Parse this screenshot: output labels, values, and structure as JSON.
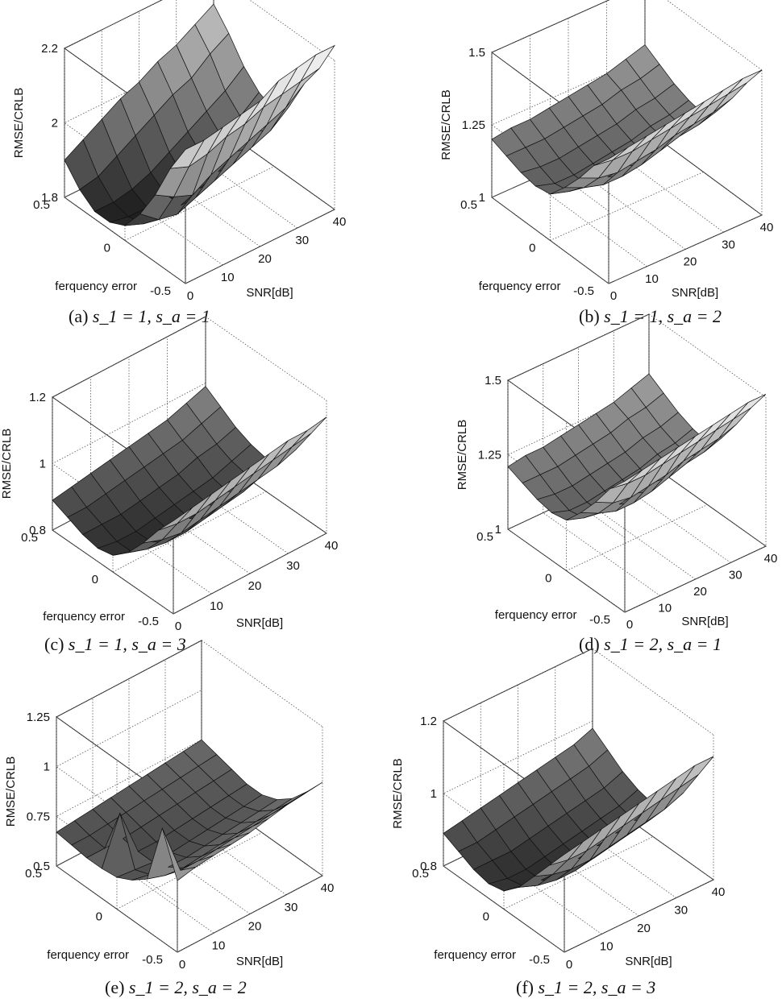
{
  "chart_data": [
    {
      "type": "surface",
      "caption_label": "(a)",
      "caption": "s_1 = 1, s_a = 1",
      "zlabel": "RMSE/CRLB",
      "xlabel": "SNR[dB]",
      "ylabel": "ferquency error",
      "x_ticks": [
        "0",
        "10",
        "20",
        "30",
        "40"
      ],
      "y_ticks": [
        "-0.5",
        "0",
        "0.5"
      ],
      "z_ticks": [
        "1.8",
        "2",
        "2.2"
      ],
      "zlim": [
        1.8,
        2.2
      ],
      "x": [
        0,
        5,
        10,
        15,
        20,
        25,
        30,
        35,
        40
      ],
      "y": [
        -0.5,
        -0.375,
        -0.25,
        -0.125,
        0,
        0.125,
        0.25,
        0.375,
        0.5
      ],
      "z": [
        [
          2.16,
          2.16,
          2.17,
          2.18,
          2.19,
          2.22,
          2.23,
          2.24,
          2.24
        ],
        [
          2.08,
          2.06,
          2.07,
          2.09,
          2.1,
          2.12,
          2.13,
          2.14,
          2.15
        ],
        [
          1.98,
          1.95,
          1.93,
          1.96,
          1.98,
          2.0,
          2.02,
          2.04,
          2.08
        ],
        [
          1.9,
          1.86,
          1.85,
          1.87,
          1.89,
          1.91,
          1.93,
          1.95,
          1.99
        ],
        [
          1.84,
          1.82,
          1.81,
          1.82,
          1.84,
          1.86,
          1.89,
          1.92,
          1.95
        ],
        [
          1.82,
          1.81,
          1.81,
          1.82,
          1.84,
          1.87,
          1.9,
          1.93,
          1.97
        ],
        [
          1.82,
          1.82,
          1.83,
          1.85,
          1.88,
          1.91,
          1.94,
          1.97,
          2.01
        ],
        [
          1.85,
          1.86,
          1.89,
          1.92,
          1.95,
          1.98,
          2.0,
          2.04,
          2.07
        ],
        [
          1.9,
          1.93,
          1.96,
          1.99,
          2.01,
          2.04,
          2.06,
          2.09,
          2.12
        ]
      ]
    },
    {
      "type": "surface",
      "caption_label": "(b)",
      "caption": "s_1 = 1, s_a = 2",
      "zlabel": "RMSE/CRLB",
      "xlabel": "SNR[dB]",
      "ylabel": "ferquency error",
      "x_ticks": [
        "0",
        "10",
        "20",
        "30",
        "40"
      ],
      "y_ticks": [
        "-0.5",
        "0",
        "0.5"
      ],
      "z_ticks": [
        "1",
        "1.25",
        "1.5"
      ],
      "zlim": [
        1,
        1.5
      ],
      "x": [
        0,
        5,
        10,
        15,
        20,
        25,
        30,
        35,
        40
      ],
      "y": [
        -0.5,
        -0.375,
        -0.25,
        -0.125,
        0,
        0.125,
        0.25,
        0.375,
        0.5
      ],
      "z": [
        [
          1.43,
          1.44,
          1.45,
          1.46,
          1.47,
          1.48,
          1.49,
          1.5,
          1.5
        ],
        [
          1.37,
          1.36,
          1.36,
          1.37,
          1.38,
          1.39,
          1.4,
          1.41,
          1.42
        ],
        [
          1.29,
          1.26,
          1.25,
          1.26,
          1.27,
          1.29,
          1.3,
          1.31,
          1.33
        ],
        [
          1.22,
          1.19,
          1.17,
          1.17,
          1.18,
          1.2,
          1.22,
          1.23,
          1.25
        ],
        [
          1.16,
          1.14,
          1.13,
          1.13,
          1.14,
          1.15,
          1.17,
          1.18,
          1.2
        ],
        [
          1.15,
          1.13,
          1.13,
          1.14,
          1.15,
          1.16,
          1.18,
          1.19,
          1.21
        ],
        [
          1.16,
          1.15,
          1.15,
          1.16,
          1.17,
          1.18,
          1.2,
          1.21,
          1.23
        ],
        [
          1.18,
          1.18,
          1.18,
          1.19,
          1.2,
          1.21,
          1.23,
          1.24,
          1.26
        ],
        [
          1.2,
          1.21,
          1.21,
          1.22,
          1.23,
          1.24,
          1.25,
          1.27,
          1.29
        ]
      ]
    },
    {
      "type": "surface",
      "caption_label": "(c)",
      "caption": "s_1 = 1, s_a = 3",
      "zlabel": "RMSE/CRLB",
      "xlabel": "SNR[dB]",
      "ylabel": "ferquency error",
      "x_ticks": [
        "0",
        "10",
        "20",
        "30",
        "40"
      ],
      "y_ticks": [
        "-0.5",
        "0",
        "0.5"
      ],
      "z_ticks": [
        "0.8",
        "1",
        "1.2"
      ],
      "zlim": [
        0.8,
        1.2
      ],
      "x": [
        0,
        5,
        10,
        15,
        20,
        25,
        30,
        35,
        40
      ],
      "y": [
        -0.5,
        -0.375,
        -0.25,
        -0.125,
        0,
        0.125,
        0.25,
        0.375,
        0.5
      ],
      "z": [
        [
          1.08,
          1.09,
          1.1,
          1.11,
          1.12,
          1.13,
          1.14,
          1.14,
          1.15
        ],
        [
          1.02,
          1.01,
          1.01,
          1.02,
          1.03,
          1.04,
          1.05,
          1.06,
          1.07
        ],
        [
          0.95,
          0.93,
          0.92,
          0.93,
          0.94,
          0.95,
          0.96,
          0.97,
          0.99
        ],
        [
          0.89,
          0.87,
          0.86,
          0.86,
          0.87,
          0.88,
          0.89,
          0.91,
          0.93
        ],
        [
          0.85,
          0.83,
          0.83,
          0.83,
          0.84,
          0.85,
          0.86,
          0.88,
          0.9
        ],
        [
          0.84,
          0.83,
          0.83,
          0.84,
          0.85,
          0.86,
          0.87,
          0.89,
          0.91
        ],
        [
          0.85,
          0.85,
          0.85,
          0.86,
          0.87,
          0.88,
          0.9,
          0.91,
          0.93
        ],
        [
          0.87,
          0.87,
          0.88,
          0.89,
          0.9,
          0.91,
          0.92,
          0.94,
          0.96
        ],
        [
          0.89,
          0.9,
          0.91,
          0.92,
          0.93,
          0.94,
          0.95,
          0.97,
          0.99
        ]
      ]
    },
    {
      "type": "surface",
      "caption_label": "(d)",
      "caption": "s_1 = 2, s_a = 1",
      "zlabel": "RMSE/CRLB",
      "xlabel": "SNR[dB]",
      "ylabel": "ferquency error",
      "x_ticks": [
        "0",
        "10",
        "20",
        "30",
        "40"
      ],
      "y_ticks": [
        "-0.5",
        "0",
        "0.5"
      ],
      "z_ticks": [
        "1",
        "1.25",
        "1.5"
      ],
      "zlim": [
        1,
        1.5
      ],
      "x": [
        0,
        5,
        10,
        15,
        20,
        25,
        30,
        35,
        40
      ],
      "y": [
        -0.5,
        -0.375,
        -0.25,
        -0.125,
        0,
        0.125,
        0.25,
        0.375,
        0.5
      ],
      "z": [
        [
          1.44,
          1.45,
          1.46,
          1.47,
          1.48,
          1.49,
          1.5,
          1.51,
          1.51
        ],
        [
          1.38,
          1.37,
          1.37,
          1.38,
          1.39,
          1.4,
          1.41,
          1.42,
          1.43
        ],
        [
          1.3,
          1.27,
          1.26,
          1.27,
          1.28,
          1.3,
          1.31,
          1.32,
          1.34
        ],
        [
          1.23,
          1.2,
          1.18,
          1.18,
          1.19,
          1.21,
          1.23,
          1.24,
          1.26
        ],
        [
          1.17,
          1.15,
          1.14,
          1.14,
          1.15,
          1.16,
          1.18,
          1.19,
          1.21
        ],
        [
          1.16,
          1.14,
          1.14,
          1.15,
          1.16,
          1.17,
          1.19,
          1.2,
          1.22
        ],
        [
          1.17,
          1.16,
          1.16,
          1.17,
          1.18,
          1.19,
          1.21,
          1.22,
          1.24
        ],
        [
          1.19,
          1.19,
          1.19,
          1.2,
          1.21,
          1.22,
          1.24,
          1.25,
          1.27
        ],
        [
          1.21,
          1.22,
          1.22,
          1.23,
          1.24,
          1.25,
          1.26,
          1.28,
          1.3
        ]
      ]
    },
    {
      "type": "surface",
      "caption_label": "(e)",
      "caption": "s_1 = 2, s_a = 2",
      "zlabel": "RMSE/CRLB",
      "xlabel": "SNR[dB]",
      "ylabel": "ferquency error",
      "x_ticks": [
        "0",
        "10",
        "20",
        "30",
        "40"
      ],
      "y_ticks": [
        "-0.5",
        "0",
        "0.5"
      ],
      "z_ticks": [
        "0.5",
        "0.75",
        "1",
        "1.25"
      ],
      "zlim": [
        0.5,
        1.25
      ],
      "x": [
        0,
        5,
        10,
        15,
        20,
        25,
        30,
        35,
        40
      ],
      "y": [
        -0.5,
        -0.375,
        -0.25,
        -0.125,
        0,
        0.125,
        0.25,
        0.375,
        0.5
      ],
      "z": [
        [
          0.86,
          0.88,
          0.89,
          0.9,
          0.91,
          0.93,
          0.95,
          0.96,
          0.97
        ],
        [
          1.07,
          0.81,
          0.81,
          0.82,
          0.83,
          0.84,
          0.85,
          0.86,
          0.87
        ],
        [
          0.76,
          0.73,
          0.72,
          0.73,
          0.74,
          0.75,
          0.76,
          0.77,
          0.78
        ],
        [
          0.7,
          0.68,
          0.67,
          0.67,
          0.68,
          0.69,
          0.7,
          0.71,
          0.72
        ],
        [
          0.66,
          0.65,
          0.64,
          0.64,
          0.65,
          0.66,
          0.67,
          0.68,
          0.69
        ],
        [
          0.65,
          0.88,
          0.64,
          0.64,
          0.65,
          0.66,
          0.67,
          0.68,
          0.69
        ],
        [
          0.65,
          0.65,
          0.65,
          0.66,
          0.67,
          0.68,
          0.69,
          0.7,
          0.71
        ],
        [
          0.66,
          0.66,
          0.67,
          0.68,
          0.69,
          0.7,
          0.71,
          0.72,
          0.73
        ],
        [
          0.67,
          0.68,
          0.69,
          0.7,
          0.71,
          0.72,
          0.73,
          0.74,
          0.75
        ]
      ]
    },
    {
      "type": "surface",
      "caption_label": "(f)",
      "caption": "s_1 = 2, s_a = 3",
      "zlabel": "RMSE/CRLB",
      "xlabel": "SNR[dB]",
      "ylabel": "ferquency error",
      "x_ticks": [
        "0",
        "10",
        "20",
        "30",
        "40"
      ],
      "y_ticks": [
        "-0.5",
        "0",
        "0.5"
      ],
      "z_ticks": [
        "0.8",
        "1",
        "1.2"
      ],
      "zlim": [
        0.8,
        1.2
      ],
      "x": [
        0,
        5,
        10,
        15,
        20,
        25,
        30,
        35,
        40
      ],
      "y": [
        -0.5,
        -0.375,
        -0.25,
        -0.125,
        0,
        0.125,
        0.25,
        0.375,
        0.5
      ],
      "z": [
        [
          1.07,
          1.08,
          1.09,
          1.1,
          1.11,
          1.12,
          1.13,
          1.14,
          1.14
        ],
        [
          1.01,
          1.0,
          1.0,
          1.01,
          1.02,
          1.03,
          1.04,
          1.05,
          1.06
        ],
        [
          0.95,
          0.93,
          0.92,
          0.92,
          0.93,
          0.94,
          0.95,
          0.96,
          0.98
        ],
        [
          0.89,
          0.87,
          0.86,
          0.86,
          0.87,
          0.88,
          0.89,
          0.9,
          0.92
        ],
        [
          0.85,
          0.84,
          0.83,
          0.83,
          0.84,
          0.85,
          0.86,
          0.87,
          0.89
        ],
        [
          0.84,
          0.83,
          0.83,
          0.84,
          0.85,
          0.86,
          0.87,
          0.88,
          0.9
        ],
        [
          0.85,
          0.85,
          0.85,
          0.86,
          0.87,
          0.88,
          0.89,
          0.9,
          0.92
        ],
        [
          0.87,
          0.87,
          0.88,
          0.89,
          0.9,
          0.91,
          0.92,
          0.93,
          0.95
        ],
        [
          0.89,
          0.9,
          0.91,
          0.92,
          0.93,
          0.94,
          0.95,
          0.96,
          0.98
        ]
      ]
    }
  ]
}
